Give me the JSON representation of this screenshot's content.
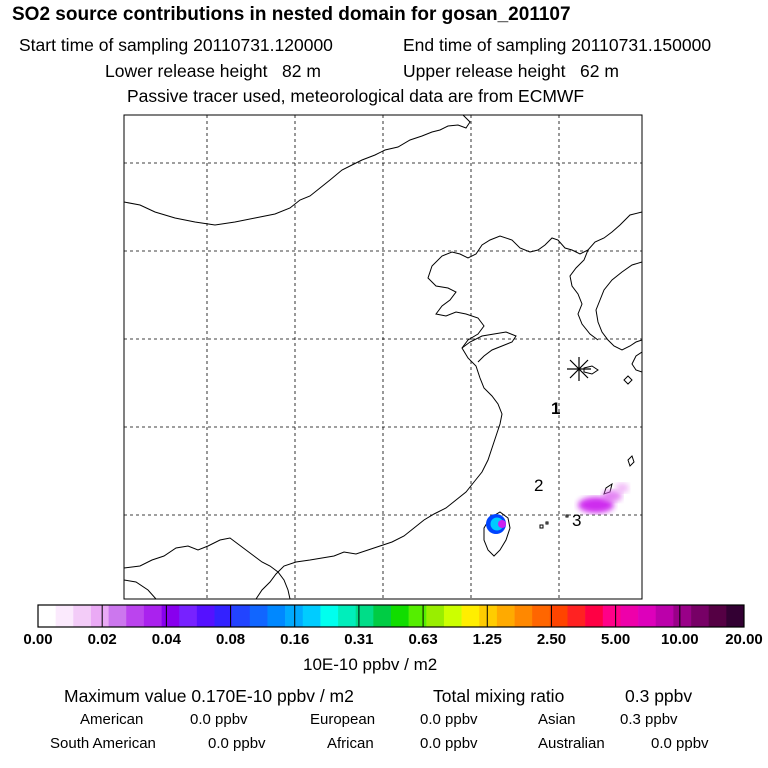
{
  "header": {
    "title": "SO2 source contributions in nested domain for gosan_201107",
    "start_label": "Start time of sampling 20110731.120000",
    "end_label": "End time of sampling 20110731.150000",
    "lower_label": "Lower release height   82 m",
    "upper_label": "Upper release height   62 m",
    "info": "Passive tracer used, meteorological data are from ECMWF"
  },
  "map": {
    "markers": [
      "1",
      "2",
      "3"
    ],
    "receptor_symbol": "asterisk",
    "plume_color": "#cc22ee",
    "hotspot_colors": [
      "#0044ff",
      "#00ccff",
      "#cc22ee"
    ]
  },
  "colorbar": {
    "colors": [
      "#ffffff",
      "#fbeafd",
      "#f3ccf8",
      "#eaaaf5",
      "#cc77ee",
      "#bb44ee",
      "#aa22ee",
      "#8800ee",
      "#7722ff",
      "#5511ff",
      "#3322ff",
      "#2244ff",
      "#1166ff",
      "#0088ff",
      "#00aaff",
      "#00ccff",
      "#00ffee",
      "#00eebb",
      "#00dd88",
      "#00cc44",
      "#11dd00",
      "#55ee00",
      "#99ee00",
      "#ccff00",
      "#ffee00",
      "#ffcc00",
      "#ffaa00",
      "#ff8800",
      "#ff6600",
      "#ff4400",
      "#ff2222",
      "#ff0044",
      "#ff0088",
      "#ee00aa",
      "#dd00bb",
      "#bb00aa",
      "#990088",
      "#770066",
      "#550044",
      "#330033"
    ],
    "ticks": [
      "0.00",
      "0.02",
      "0.04",
      "0.08",
      "0.16",
      "0.31",
      "0.63",
      "1.25",
      "2.50",
      "5.00",
      "10.00",
      "20.00"
    ],
    "unit": "10E-10 ppbv / m2"
  },
  "footer": {
    "max_label": "Maximum value  0.170E-10 ppbv / m2",
    "total_label": "Total mixing ratio",
    "total_value": "0.3 ppbv",
    "rows": [
      [
        {
          "name": "American",
          "value": "0.0 ppbv"
        },
        {
          "name": "European",
          "value": "0.0 ppbv"
        },
        {
          "name": "Asian",
          "value": "0.3 ppbv"
        }
      ],
      [
        {
          "name": "South American",
          "value": "0.0 ppbv"
        },
        {
          "name": "African",
          "value": "0.0 ppbv"
        },
        {
          "name": "Australian",
          "value": "0.0 ppbv"
        }
      ]
    ]
  }
}
